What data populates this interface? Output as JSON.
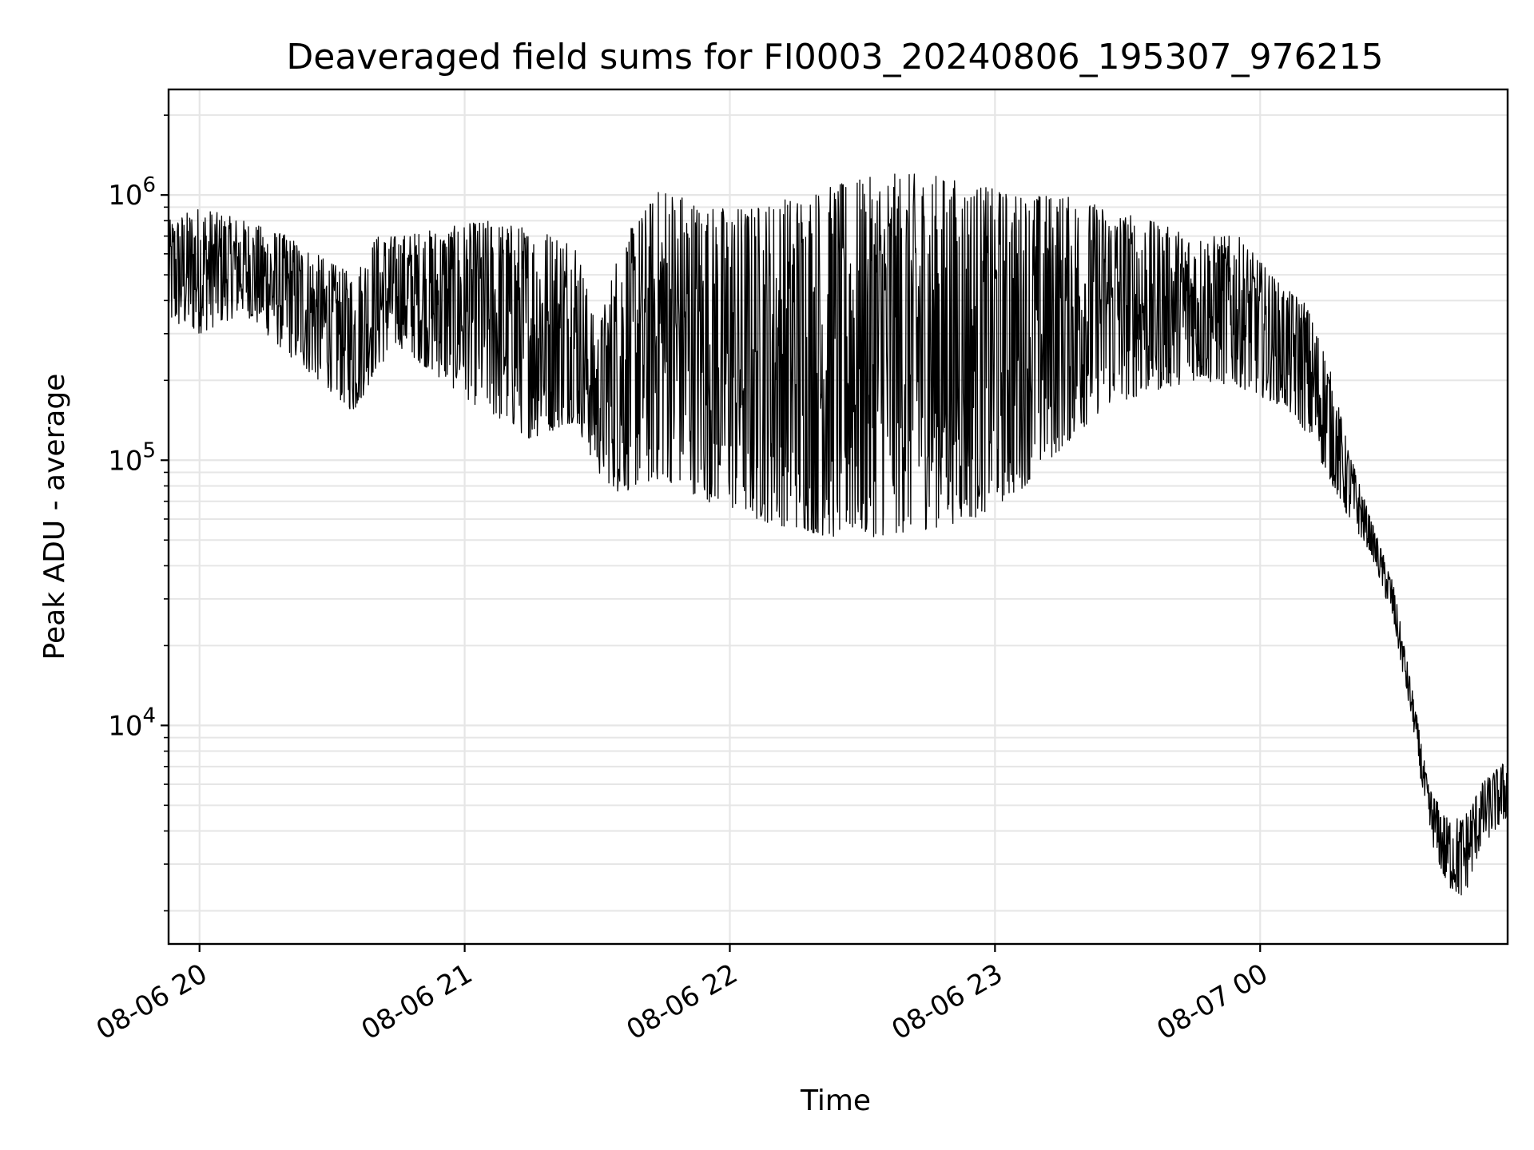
{
  "chart_data": {
    "type": "line",
    "title": "Deaveraged field sums for FI0003_20240806_195307_976215",
    "xlabel": "Time",
    "ylabel": "Peak ADU - average",
    "x_scale": "time",
    "y_scale": "log",
    "xlim": [
      "08-06 19:53",
      "08-07 00:56"
    ],
    "ylim": [
      1500,
      2500000
    ],
    "xticks": [
      "08-06 20",
      "08-06 21",
      "08-06 22",
      "08-06 23",
      "08-07 00"
    ],
    "ytick_labels": [
      "10^4",
      "10^5",
      "10^6"
    ],
    "grid": true,
    "legend": "none",
    "line_color": "#000000",
    "series": [
      {
        "values_note_unit": "Peak ADU",
        "x": [
          "08-06 19:53",
          "08-06 20:00",
          "08-06 20:10",
          "08-06 20:20",
          "08-06 20:30",
          "08-06 20:35",
          "08-06 20:40",
          "08-06 20:45",
          "08-06 20:55",
          "08-06 21:05",
          "08-06 21:15",
          "08-06 21:25",
          "08-06 21:30",
          "08-06 21:35",
          "08-06 21:45",
          "08-06 21:55",
          "08-06 22:05",
          "08-06 22:15",
          "08-06 22:25",
          "08-06 22:35",
          "08-06 22:45",
          "08-06 22:55",
          "08-06 23:05",
          "08-06 23:15",
          "08-06 23:25",
          "08-06 23:35",
          "08-06 23:45",
          "08-06 23:55",
          "08-07 00:05",
          "08-07 00:10",
          "08-07 00:15",
          "08-07 00:20",
          "08-07 00:25",
          "08-07 00:30",
          "08-07 00:35",
          "08-07 00:38",
          "08-07 00:42",
          "08-07 00:46",
          "08-07 00:50",
          "08-07 00:56"
        ],
        "y_low": [
          320000,
          300000,
          360000,
          250000,
          180000,
          150000,
          220000,
          270000,
          200000,
          150000,
          120000,
          140000,
          90000,
          75000,
          85000,
          70000,
          60000,
          55000,
          50000,
          52000,
          55000,
          60000,
          75000,
          110000,
          160000,
          180000,
          200000,
          190000,
          160000,
          130000,
          90000,
          60000,
          45000,
          25000,
          9000,
          4000,
          2500,
          2200,
          3500,
          4500
        ],
        "y_high": [
          800000,
          900000,
          800000,
          700000,
          550000,
          500000,
          700000,
          700000,
          750000,
          800000,
          750000,
          700000,
          300000,
          650000,
          1100000,
          900000,
          900000,
          1000000,
          1100000,
          1200000,
          1200000,
          1100000,
          1000000,
          1000000,
          900000,
          800000,
          700000,
          700000,
          450000,
          400000,
          250000,
          110000,
          60000,
          35000,
          12000,
          6000,
          4500,
          4500,
          6000,
          7500
        ]
      }
    ]
  }
}
